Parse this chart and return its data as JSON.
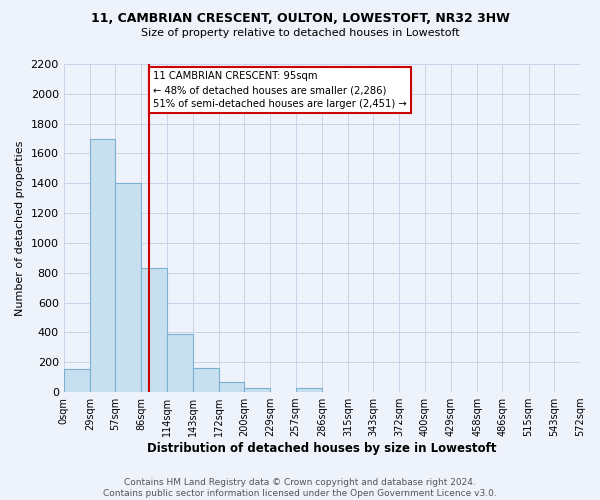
{
  "title1": "11, CAMBRIAN CRESCENT, OULTON, LOWESTOFT, NR32 3HW",
  "title2": "Size of property relative to detached houses in Lowestoft",
  "xlabel": "Distribution of detached houses by size in Lowestoft",
  "ylabel": "Number of detached properties",
  "bin_edges": [
    0,
    29,
    57,
    86,
    114,
    143,
    172,
    200,
    229,
    257,
    286,
    315,
    343,
    372,
    400,
    429,
    458,
    486,
    515,
    543,
    572
  ],
  "bin_labels": [
    "0sqm",
    "29sqm",
    "57sqm",
    "86sqm",
    "114sqm",
    "143sqm",
    "172sqm",
    "200sqm",
    "229sqm",
    "257sqm",
    "286sqm",
    "315sqm",
    "343sqm",
    "372sqm",
    "400sqm",
    "429sqm",
    "458sqm",
    "486sqm",
    "515sqm",
    "543sqm",
    "572sqm"
  ],
  "bar_heights": [
    155,
    1700,
    1400,
    830,
    390,
    160,
    65,
    30,
    0,
    25,
    0,
    0,
    0,
    0,
    0,
    0,
    0,
    0,
    0,
    0
  ],
  "bar_color": "#c8dff0",
  "bar_edge_color": "#7ab0d0",
  "vline_x": 95,
  "vline_color": "#cc0000",
  "annotation_line1": "11 CAMBRIAN CRESCENT: 95sqm",
  "annotation_line2": "← 48% of detached houses are smaller (2,286)",
  "annotation_line3": "51% of semi-detached houses are larger (2,451) →",
  "annotation_box_color": "#ffffff",
  "annotation_box_edge": "#cc0000",
  "ylim": [
    0,
    2200
  ],
  "yticks": [
    0,
    200,
    400,
    600,
    800,
    1000,
    1200,
    1400,
    1600,
    1800,
    2000,
    2200
  ],
  "footer_line1": "Contains HM Land Registry data © Crown copyright and database right 2024.",
  "footer_line2": "Contains public sector information licensed under the Open Government Licence v3.0.",
  "grid_color": "#c8d4e8",
  "background_color": "#eef2fa"
}
